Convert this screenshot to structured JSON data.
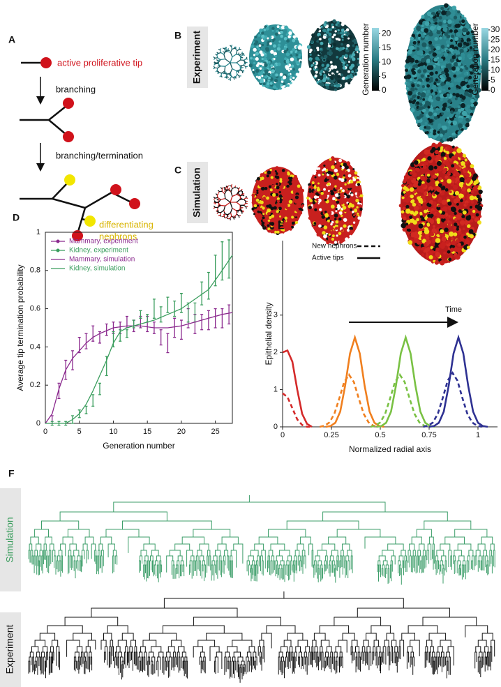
{
  "panel_a": {
    "label": "A",
    "tip_label": "active proliferative tip",
    "step_1": "branching",
    "step_2": "branching/termination",
    "nephron_label": [
      "differentiating",
      "nephrons"
    ]
  },
  "panel_b": {
    "label": "B",
    "row_label": "Experiment",
    "colorbars": [
      {
        "title": "Generation number",
        "lim": [
          0,
          22
        ],
        "ticks": [
          0,
          5,
          10,
          15,
          20
        ]
      },
      {
        "title": "Generation number",
        "lim": [
          0,
          31
        ],
        "ticks": [
          0,
          5,
          10,
          15,
          20,
          25,
          30
        ]
      }
    ]
  },
  "panel_c": {
    "label": "C",
    "row_label": "Simulation"
  },
  "panel_f": {
    "label": "F",
    "rows": [
      "Simulation",
      "Experiment"
    ]
  },
  "chart_data": [
    {
      "type": "line",
      "panel_label": "D",
      "xlabel": "Generation number",
      "ylabel": "Average tip termination probability",
      "xlim": [
        0,
        27.5
      ],
      "ylim": [
        0,
        1
      ],
      "xticks": [
        0,
        5,
        10,
        15,
        20,
        25
      ],
      "yticks": [
        0,
        0.2,
        0.4,
        0.6,
        0.8,
        1
      ],
      "box": true,
      "legend": "upper left",
      "series": [
        {
          "name": "Mammary, experiment",
          "color": "#8b2a8e",
          "kind": "errorbar",
          "x": [
            1,
            2,
            3,
            4,
            5,
            6,
            7,
            8,
            9,
            10,
            11,
            12,
            13,
            14,
            15,
            16,
            17,
            18,
            19,
            20,
            21,
            22,
            23,
            24,
            25,
            26,
            27
          ],
          "values": [
            0.02,
            0.17,
            0.28,
            0.33,
            0.41,
            0.43,
            0.47,
            0.45,
            0.49,
            0.5,
            0.5,
            0.53,
            0.51,
            0.53,
            0.52,
            0.5,
            0.45,
            0.42,
            0.5,
            0.49,
            0.55,
            0.52,
            0.53,
            0.54,
            0.55,
            0.55,
            0.57
          ],
          "errors": [
            0.02,
            0.04,
            0.05,
            0.05,
            0.04,
            0.04,
            0.04,
            0.03,
            0.03,
            0.03,
            0.03,
            0.03,
            0.03,
            0.03,
            0.04,
            0.03,
            0.04,
            0.05,
            0.05,
            0.05,
            0.05,
            0.05,
            0.04,
            0.05,
            0.05,
            0.05,
            0.05
          ]
        },
        {
          "name": "Kidney, experiment",
          "color": "#3a9d5d",
          "kind": "errorbar",
          "x": [
            1,
            2,
            3,
            4,
            5,
            6,
            7,
            8,
            9,
            10,
            11,
            12,
            13,
            14,
            15,
            16,
            17,
            18,
            19,
            20,
            21,
            22,
            23,
            24,
            25,
            26,
            27
          ],
          "values": [
            0,
            0,
            0,
            0.02,
            0.05,
            0.07,
            0.12,
            0.18,
            0.3,
            0.44,
            0.46,
            0.47,
            0.52,
            0.57,
            0.55,
            0.6,
            0.57,
            0.62,
            0.6,
            0.63,
            0.58,
            0.58,
            0.68,
            0.72,
            0.8,
            0.85,
            0.86
          ],
          "errors": [
            0.01,
            0.01,
            0.01,
            0.02,
            0.02,
            0.02,
            0.03,
            0.03,
            0.05,
            0.04,
            0.03,
            0.02,
            0.02,
            0.02,
            0.02,
            0.05,
            0.04,
            0.04,
            0.04,
            0.05,
            0.05,
            0.05,
            0.06,
            0.07,
            0.08,
            0.1,
            0.1
          ]
        },
        {
          "name": "Mammary, simulation",
          "color": "#8b2a8e",
          "kind": "line",
          "x": [
            0,
            1,
            2,
            3,
            4,
            5,
            6,
            7,
            8,
            10,
            12,
            14,
            16,
            18,
            20,
            22,
            24,
            26,
            27.5
          ],
          "values": [
            0,
            0.05,
            0.18,
            0.28,
            0.34,
            0.38,
            0.42,
            0.45,
            0.47,
            0.5,
            0.51,
            0.51,
            0.5,
            0.5,
            0.51,
            0.53,
            0.55,
            0.57,
            0.58
          ]
        },
        {
          "name": "Kidney, simulation",
          "color": "#3a9d5d",
          "kind": "line",
          "x": [
            0,
            3,
            4,
            5,
            6,
            7,
            8,
            9,
            10,
            11,
            12,
            14,
            16,
            18,
            20,
            22,
            24,
            26,
            27.5
          ],
          "values": [
            0,
            0,
            0.02,
            0.05,
            0.1,
            0.17,
            0.25,
            0.33,
            0.42,
            0.48,
            0.5,
            0.52,
            0.54,
            0.57,
            0.6,
            0.65,
            0.7,
            0.8,
            0.88
          ]
        }
      ]
    },
    {
      "type": "line",
      "panel_label": "E",
      "xlabel": "Normalized radial axis",
      "ylabel": "Epithelial density",
      "xlim": [
        0,
        1.1
      ],
      "ylim": [
        0,
        5
      ],
      "xticks": [
        0,
        0.25,
        0.5,
        0.75,
        1
      ],
      "yticks": [
        0,
        1,
        2,
        3
      ],
      "annotation": "Time",
      "legend": "upper left",
      "legend_entries": [
        {
          "name": "New nephrons",
          "dash": "dashed"
        },
        {
          "name": "Active tips",
          "dash": "solid"
        }
      ],
      "series": [
        {
          "color": "#d42a2a",
          "dash": "dashed",
          "x": [
            0,
            0.025,
            0.05,
            0.075,
            0.1,
            0.125,
            0.15
          ],
          "values": [
            0.9,
            0.8,
            0.5,
            0.2,
            0.05,
            0,
            0
          ]
        },
        {
          "color": "#d42a2a",
          "dash": "solid",
          "x": [
            0,
            0.025,
            0.05,
            0.075,
            0.1,
            0.125,
            0.15
          ],
          "values": [
            2,
            2.05,
            1.75,
            1,
            0.35,
            0.08,
            0
          ]
        },
        {
          "color": "#f07f1e",
          "dash": "dashed",
          "x": [
            0.19,
            0.215,
            0.24,
            0.265,
            0.29,
            0.315,
            0.34,
            0.365,
            0.39,
            0.415,
            0.44,
            0.465,
            0.49
          ],
          "values": [
            0,
            0.03,
            0.12,
            0.35,
            0.76,
            1.2,
            1.4,
            1.2,
            0.76,
            0.35,
            0.12,
            0.03,
            0
          ]
        },
        {
          "color": "#f07f1e",
          "dash": "solid",
          "x": [
            0.22,
            0.245,
            0.27,
            0.295,
            0.32,
            0.345,
            0.37,
            0.395,
            0.42,
            0.445,
            0.47,
            0.495,
            0.52
          ],
          "values": [
            0,
            0.02,
            0.11,
            0.41,
            1.1,
            1.97,
            2.4,
            1.97,
            1.1,
            0.41,
            0.11,
            0.02,
            0
          ]
        },
        {
          "color": "#79c143",
          "dash": "dashed",
          "x": [
            0.45,
            0.475,
            0.5,
            0.525,
            0.55,
            0.575,
            0.6,
            0.625,
            0.65,
            0.675,
            0.7,
            0.725,
            0.75
          ],
          "values": [
            0,
            0.03,
            0.12,
            0.35,
            0.76,
            1.2,
            1.4,
            1.2,
            0.76,
            0.35,
            0.12,
            0.03,
            0
          ]
        },
        {
          "color": "#79c143",
          "dash": "solid",
          "x": [
            0.48,
            0.505,
            0.53,
            0.555,
            0.58,
            0.605,
            0.63,
            0.655,
            0.68,
            0.705,
            0.73,
            0.755,
            0.78
          ],
          "values": [
            0,
            0.02,
            0.11,
            0.41,
            1.1,
            1.97,
            2.4,
            1.97,
            1.1,
            0.41,
            0.11,
            0.02,
            0
          ]
        },
        {
          "color": "#2e3192",
          "dash": "dashed",
          "x": [
            0.72,
            0.745,
            0.77,
            0.795,
            0.82,
            0.845,
            0.87,
            0.895,
            0.92,
            0.945,
            0.97,
            0.995,
            1.02
          ],
          "values": [
            0,
            0.03,
            0.12,
            0.36,
            0.78,
            1.24,
            1.45,
            1.24,
            0.78,
            0.36,
            0.12,
            0.03,
            0
          ]
        },
        {
          "color": "#2e3192",
          "dash": "solid",
          "x": [
            0.75,
            0.775,
            0.8,
            0.825,
            0.85,
            0.875,
            0.9,
            0.925,
            0.95,
            0.975,
            1,
            1.025,
            1.05
          ],
          "values": [
            0,
            0.02,
            0.11,
            0.41,
            1.1,
            1.97,
            2.4,
            1.97,
            1.1,
            0.41,
            0.11,
            0.02,
            0
          ]
        }
      ]
    }
  ]
}
